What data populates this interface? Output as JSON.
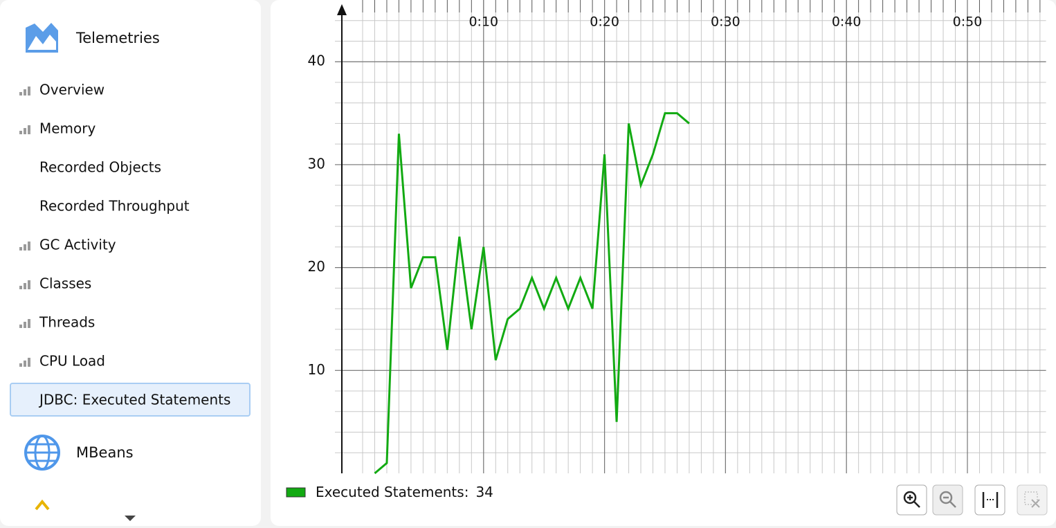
{
  "sidebar": {
    "header": {
      "label": "Telemetries"
    },
    "items": [
      {
        "label": "Overview",
        "style": "icon"
      },
      {
        "label": "Memory",
        "style": "icon"
      },
      {
        "label": "Recorded Objects",
        "style": "dimmed"
      },
      {
        "label": "Recorded Throughput",
        "style": "dimmed"
      },
      {
        "label": "GC Activity",
        "style": "icon"
      },
      {
        "label": "Classes",
        "style": "icon"
      },
      {
        "label": "Threads",
        "style": "icon"
      },
      {
        "label": "CPU Load",
        "style": "icon"
      },
      {
        "label": "JDBC: Executed Statements",
        "style": "selected"
      }
    ],
    "footer": {
      "label": "MBeans"
    }
  },
  "chart_data": {
    "type": "line",
    "x": [
      1,
      2,
      3,
      4,
      5,
      6,
      7,
      8,
      9,
      10,
      11,
      12,
      13,
      14,
      15,
      16,
      17,
      18,
      19,
      20,
      21,
      22,
      23,
      24,
      25,
      26,
      27
    ],
    "series": [
      {
        "name": "Executed Statements:",
        "color": "#12aa12",
        "values": [
          0,
          1,
          33,
          18,
          21,
          21,
          12,
          23,
          14,
          22,
          11,
          15,
          16,
          19,
          16,
          19,
          16,
          19,
          16,
          31,
          5,
          34,
          28,
          31,
          35,
          35,
          34
        ]
      }
    ],
    "xlim": [
      0,
      56.5
    ],
    "xticks": [
      {
        "value": 10,
        "label": "0:10"
      },
      {
        "value": 20,
        "label": "0:20"
      },
      {
        "value": 30,
        "label": "0:30"
      },
      {
        "value": 40,
        "label": "0:40"
      },
      {
        "value": 50,
        "label": "0:50"
      }
    ],
    "ylim": [
      0,
      46
    ],
    "yticks": [
      10,
      20,
      30,
      40
    ],
    "grid": true
  }
}
